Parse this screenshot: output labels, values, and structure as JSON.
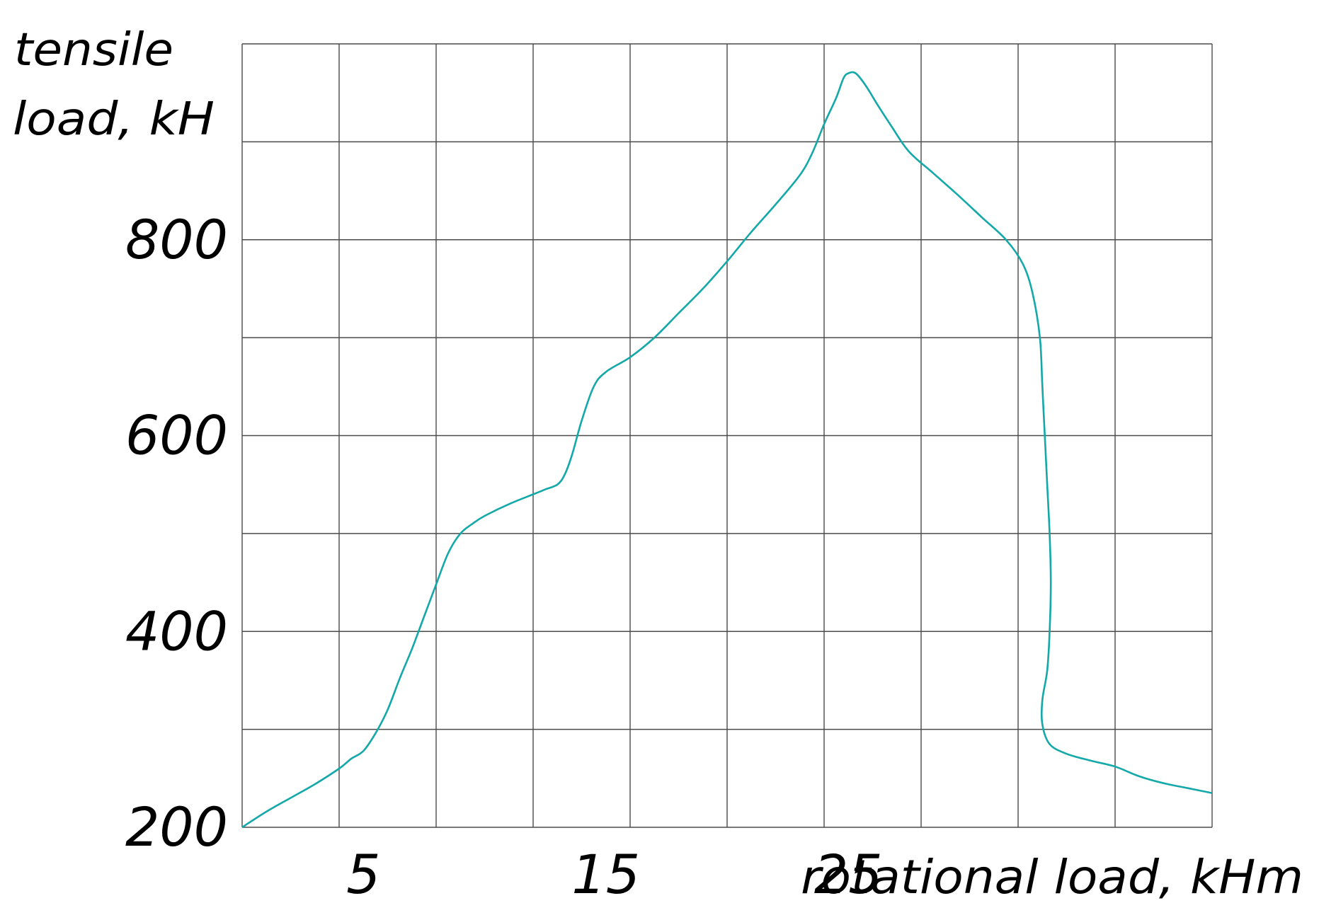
{
  "chart_data": {
    "type": "line",
    "title": "",
    "ylabel_lines": [
      "tensile",
      "load, kH"
    ],
    "xlabel": "rotational load, kHm",
    "xlim": [
      0,
      40
    ],
    "ylim": [
      200,
      1000
    ],
    "x_ticks": [
      5,
      15,
      25
    ],
    "y_ticks": [
      200,
      400,
      600,
      800
    ],
    "grid": true,
    "series": [
      {
        "color": "#14a8a8",
        "x": [
          0,
          1,
          2,
          3,
          4,
          4.5,
          5.0,
          5.5,
          6.0,
          6.5,
          7.0,
          7.5,
          8.0,
          8.5,
          9.0,
          9.5,
          10.0,
          11.0,
          12.0,
          12.5,
          13.0,
          13.3,
          13.6,
          14.0,
          14.5,
          15.0,
          16.0,
          17.0,
          18.0,
          19.0,
          20.0,
          21.0,
          22.0,
          23.0,
          23.5,
          24.0,
          24.5,
          24.8,
          25.0,
          25.3,
          25.7,
          26.2,
          26.8,
          27.5,
          28.5,
          29.5,
          30.5,
          31.5,
          32.2,
          32.6,
          32.9,
          33.0,
          33.1,
          33.2,
          33.3,
          33.35,
          33.3,
          33.2,
          33.0,
          33.0,
          33.3,
          34.0,
          35.0,
          36.0,
          37.0,
          38.0,
          39.0,
          40.0
        ],
        "y": [
          200,
          216,
          230,
          244,
          260,
          270,
          278,
          296,
          320,
          352,
          382,
          415,
          448,
          480,
          500,
          510,
          518,
          530,
          540,
          545,
          550,
          560,
          580,
          615,
          650,
          665,
          680,
          700,
          725,
          750,
          778,
          808,
          836,
          866,
          888,
          918,
          945,
          965,
          970,
          970,
          958,
          938,
          915,
          890,
          868,
          846,
          823,
          800,
          775,
          745,
          700,
          650,
          600,
          550,
          500,
          450,
          400,
          360,
          330,
          305,
          285,
          275,
          268,
          262,
          252,
          245,
          240,
          235
        ]
      }
    ]
  }
}
